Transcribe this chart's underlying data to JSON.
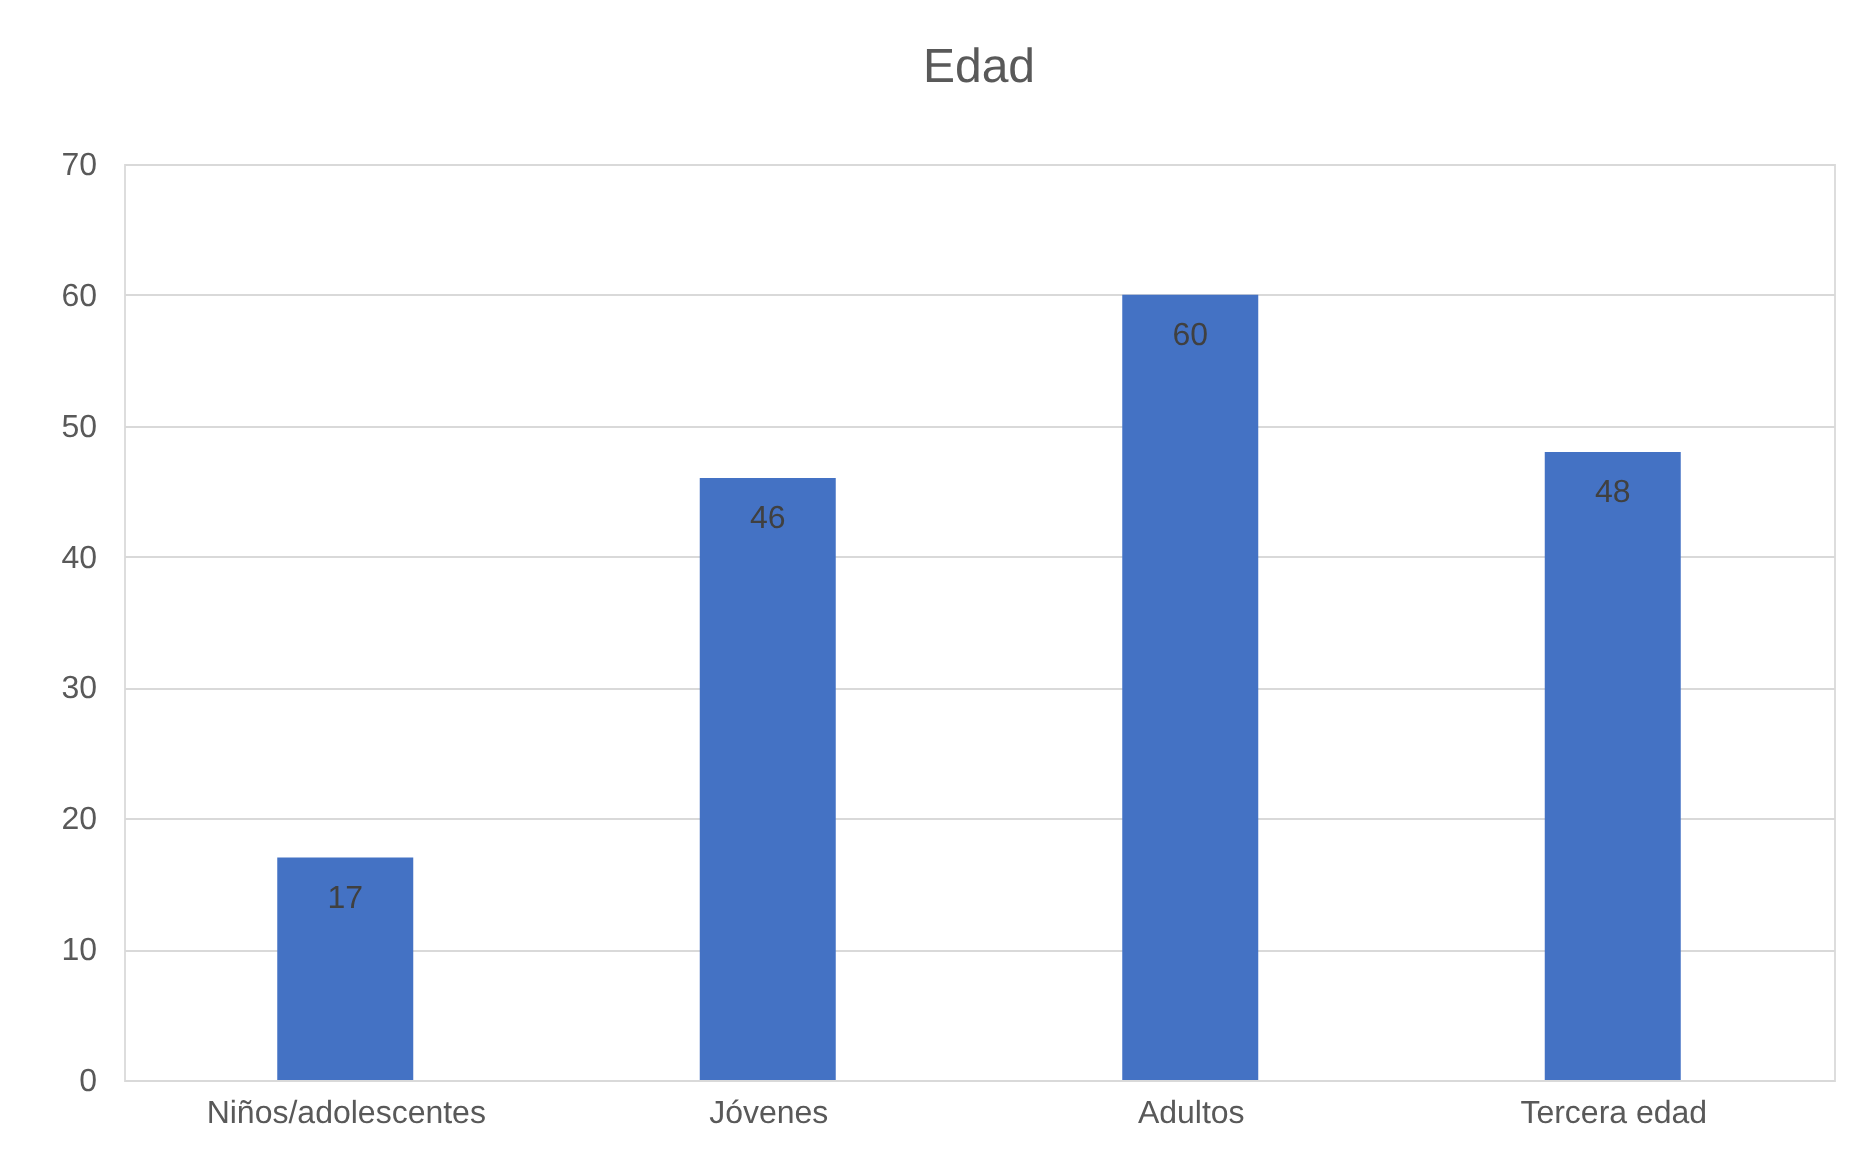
{
  "chart_data": {
    "type": "bar",
    "title": "Edad",
    "categories": [
      "Niños/adolescentes",
      "Jóvenes",
      "Adultos",
      "Tercera edad"
    ],
    "values": [
      17,
      46,
      60,
      48
    ],
    "color": "#4472c4",
    "ylim": [
      0,
      70
    ],
    "yticks": [
      0,
      10,
      20,
      30,
      40,
      50,
      60,
      70
    ],
    "grid": "y",
    "data_labels": true
  }
}
